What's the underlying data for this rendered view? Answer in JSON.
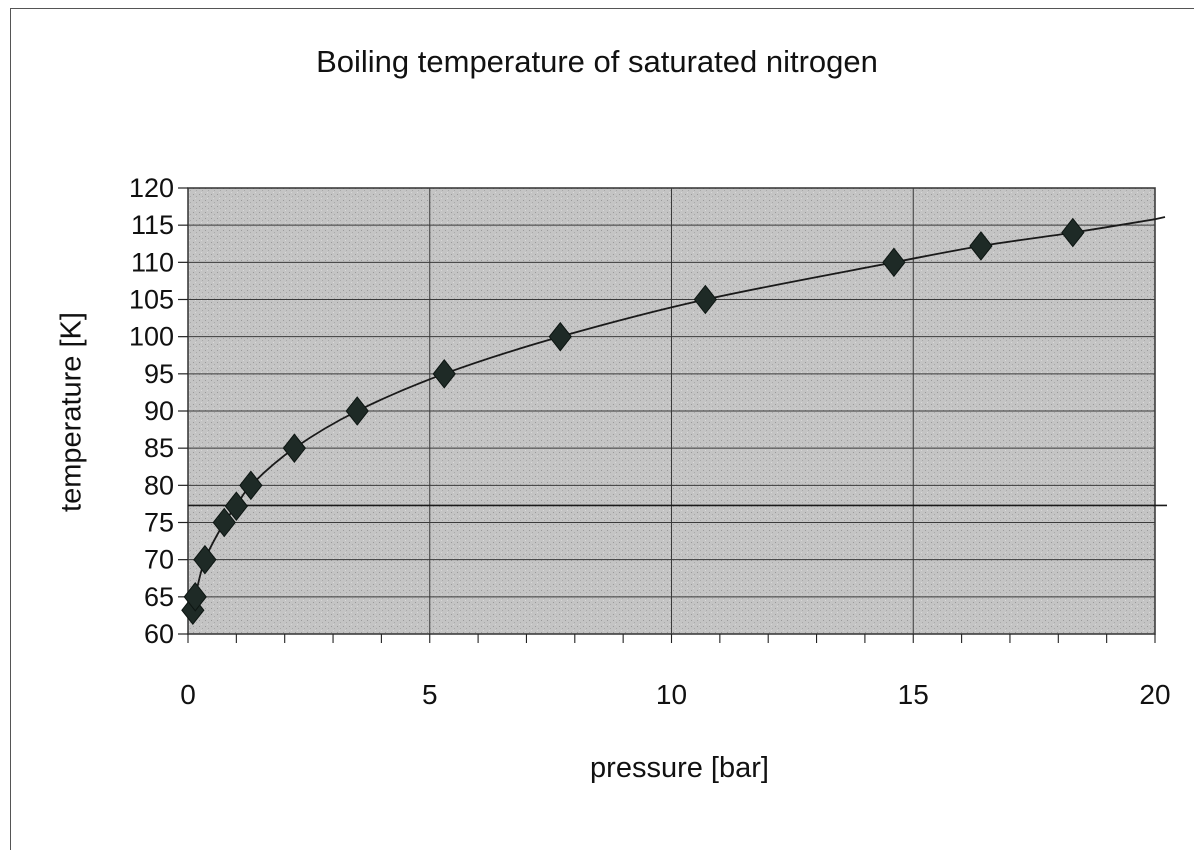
{
  "chart_data": {
    "type": "scatter",
    "title": "Boiling temperature of saturated nitrogen",
    "xlabel": "pressure [bar]",
    "ylabel": "temperature [K]",
    "xlim": [
      0,
      20
    ],
    "ylim": [
      60,
      120
    ],
    "x_ticks": [
      "0",
      "5",
      "10",
      "15",
      "20"
    ],
    "y_ticks": [
      "120",
      "115",
      "110",
      "105",
      "100",
      "95",
      "90",
      "85",
      "80",
      "75",
      "70",
      "65",
      "60"
    ],
    "grid": true,
    "legend": "none",
    "trendline": true,
    "reference_line_y": 77.3,
    "marker": "diamond",
    "colors": {
      "plot_bg": "#c2c2c2",
      "marker": "#1e2a26",
      "line": "#1a1a1a",
      "grid": "#3a3a3a"
    },
    "points": [
      {
        "x": 0.1,
        "y": 63.2
      },
      {
        "x": 0.15,
        "y": 65
      },
      {
        "x": 0.35,
        "y": 70
      },
      {
        "x": 0.75,
        "y": 75
      },
      {
        "x": 1.0,
        "y": 77.2
      },
      {
        "x": 1.3,
        "y": 80
      },
      {
        "x": 2.2,
        "y": 85
      },
      {
        "x": 3.5,
        "y": 90
      },
      {
        "x": 5.3,
        "y": 95
      },
      {
        "x": 7.7,
        "y": 100
      },
      {
        "x": 10.7,
        "y": 105
      },
      {
        "x": 14.6,
        "y": 110
      },
      {
        "x": 16.4,
        "y": 112.2
      },
      {
        "x": 18.3,
        "y": 114
      }
    ]
  }
}
